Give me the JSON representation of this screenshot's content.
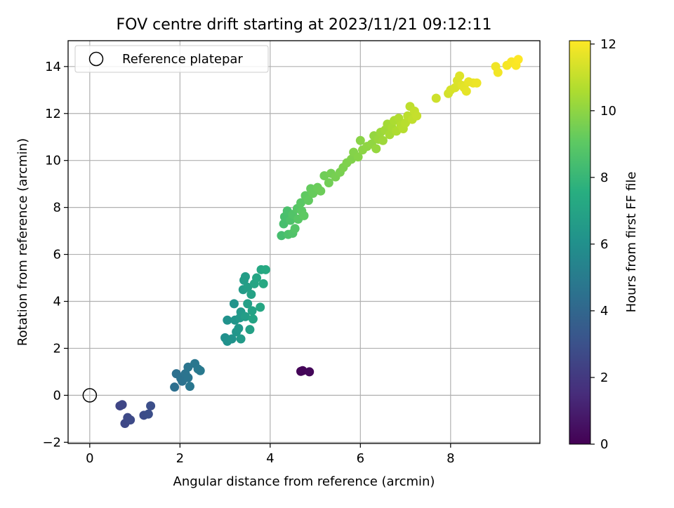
{
  "chart_data": {
    "type": "scatter",
    "title": "FOV centre drift starting at 2023/11/21 09:12:11",
    "xlabel": "Angular distance from reference (arcmin)",
    "ylabel": "Rotation from reference (arcmin)",
    "xlim": [
      -0.48,
      9.98
    ],
    "ylim": [
      -2.05,
      15.1
    ],
    "x_ticks": [
      0,
      2,
      4,
      6,
      8
    ],
    "y_ticks": [
      -2,
      0,
      2,
      4,
      6,
      8,
      10,
      12,
      14
    ],
    "grid": true,
    "legend": {
      "placement": "upper-left",
      "entries": [
        "Reference platepar"
      ]
    },
    "colorbar": {
      "label": "Hours from first FF file",
      "colormap": "viridis",
      "range": [
        0,
        12.1
      ],
      "ticks": [
        0,
        2,
        4,
        6,
        8,
        10,
        12
      ]
    },
    "reference_point": {
      "x": 0,
      "y": 0
    },
    "points": [
      {
        "x": 4.68,
        "y": 1.02,
        "c": 0.1
      },
      {
        "x": 4.72,
        "y": 1.05,
        "c": 0.15
      },
      {
        "x": 4.87,
        "y": 1.0,
        "c": 0.2
      },
      {
        "x": 0.67,
        "y": -0.45,
        "c": 2.5
      },
      {
        "x": 0.72,
        "y": -0.4,
        "c": 2.55
      },
      {
        "x": 0.78,
        "y": -1.2,
        "c": 2.6
      },
      {
        "x": 0.84,
        "y": -0.95,
        "c": 2.65
      },
      {
        "x": 0.9,
        "y": -1.05,
        "c": 2.7
      },
      {
        "x": 1.2,
        "y": -0.85,
        "c": 2.8
      },
      {
        "x": 1.3,
        "y": -0.8,
        "c": 2.85
      },
      {
        "x": 1.35,
        "y": -0.45,
        "c": 2.9
      },
      {
        "x": 1.88,
        "y": 0.35,
        "c": 4.4
      },
      {
        "x": 1.92,
        "y": 0.92,
        "c": 4.45
      },
      {
        "x": 2.02,
        "y": 0.72,
        "c": 4.5
      },
      {
        "x": 2.05,
        "y": 0.6,
        "c": 4.55
      },
      {
        "x": 2.12,
        "y": 0.92,
        "c": 4.6
      },
      {
        "x": 2.18,
        "y": 0.75,
        "c": 4.65
      },
      {
        "x": 2.18,
        "y": 1.2,
        "c": 4.7
      },
      {
        "x": 2.22,
        "y": 0.38,
        "c": 4.75
      },
      {
        "x": 2.33,
        "y": 1.35,
        "c": 4.8
      },
      {
        "x": 2.4,
        "y": 1.12,
        "c": 4.85
      },
      {
        "x": 2.45,
        "y": 1.05,
        "c": 4.9
      },
      {
        "x": 3.0,
        "y": 2.45,
        "c": 6.0
      },
      {
        "x": 3.05,
        "y": 2.3,
        "c": 6.05
      },
      {
        "x": 3.05,
        "y": 3.2,
        "c": 6.1
      },
      {
        "x": 3.15,
        "y": 2.4,
        "c": 6.15
      },
      {
        "x": 3.2,
        "y": 3.9,
        "c": 6.2
      },
      {
        "x": 3.22,
        "y": 3.2,
        "c": 6.25
      },
      {
        "x": 3.25,
        "y": 2.7,
        "c": 6.3
      },
      {
        "x": 3.3,
        "y": 2.85,
        "c": 6.35
      },
      {
        "x": 3.33,
        "y": 3.3,
        "c": 6.4
      },
      {
        "x": 3.35,
        "y": 3.55,
        "c": 6.45
      },
      {
        "x": 3.35,
        "y": 2.4,
        "c": 6.5
      },
      {
        "x": 3.4,
        "y": 4.5,
        "c": 6.55
      },
      {
        "x": 3.42,
        "y": 4.9,
        "c": 6.6
      },
      {
        "x": 3.45,
        "y": 3.35,
        "c": 6.65
      },
      {
        "x": 3.45,
        "y": 5.05,
        "c": 6.7
      },
      {
        "x": 3.5,
        "y": 4.6,
        "c": 6.75
      },
      {
        "x": 3.5,
        "y": 3.9,
        "c": 6.8
      },
      {
        "x": 3.55,
        "y": 2.8,
        "c": 6.85
      },
      {
        "x": 3.58,
        "y": 4.3,
        "c": 6.9
      },
      {
        "x": 3.6,
        "y": 3.6,
        "c": 6.95
      },
      {
        "x": 3.62,
        "y": 3.25,
        "c": 7.0
      },
      {
        "x": 3.65,
        "y": 4.75,
        "c": 7.05
      },
      {
        "x": 3.7,
        "y": 5.0,
        "c": 7.1
      },
      {
        "x": 3.78,
        "y": 3.75,
        "c": 7.15
      },
      {
        "x": 3.8,
        "y": 5.35,
        "c": 7.2
      },
      {
        "x": 3.85,
        "y": 4.75,
        "c": 7.25
      },
      {
        "x": 3.9,
        "y": 5.35,
        "c": 7.3
      },
      {
        "x": 4.25,
        "y": 6.8,
        "c": 8.4
      },
      {
        "x": 4.3,
        "y": 7.3,
        "c": 8.45
      },
      {
        "x": 4.32,
        "y": 7.6,
        "c": 8.5
      },
      {
        "x": 4.38,
        "y": 7.85,
        "c": 8.55
      },
      {
        "x": 4.4,
        "y": 6.85,
        "c": 8.6
      },
      {
        "x": 4.45,
        "y": 7.45,
        "c": 8.65
      },
      {
        "x": 4.5,
        "y": 6.9,
        "c": 8.7
      },
      {
        "x": 4.5,
        "y": 7.7,
        "c": 8.75
      },
      {
        "x": 4.55,
        "y": 7.1,
        "c": 8.8
      },
      {
        "x": 4.6,
        "y": 7.95,
        "c": 8.85
      },
      {
        "x": 4.62,
        "y": 7.5,
        "c": 8.9
      },
      {
        "x": 4.68,
        "y": 8.2,
        "c": 8.95
      },
      {
        "x": 4.7,
        "y": 7.85,
        "c": 9.0
      },
      {
        "x": 4.75,
        "y": 7.65,
        "c": 9.05
      },
      {
        "x": 4.78,
        "y": 8.5,
        "c": 9.1
      },
      {
        "x": 4.85,
        "y": 8.3,
        "c": 9.15
      },
      {
        "x": 4.9,
        "y": 8.8,
        "c": 9.2
      },
      {
        "x": 4.95,
        "y": 8.6,
        "c": 9.25
      },
      {
        "x": 5.05,
        "y": 8.85,
        "c": 9.3
      },
      {
        "x": 5.12,
        "y": 8.7,
        "c": 9.35
      },
      {
        "x": 5.2,
        "y": 9.35,
        "c": 9.4
      },
      {
        "x": 5.3,
        "y": 9.05,
        "c": 9.45
      },
      {
        "x": 5.35,
        "y": 9.45,
        "c": 9.5
      },
      {
        "x": 5.45,
        "y": 9.3,
        "c": 9.55
      },
      {
        "x": 5.55,
        "y": 9.5,
        "c": 9.6
      },
      {
        "x": 5.62,
        "y": 9.7,
        "c": 9.65
      },
      {
        "x": 5.7,
        "y": 9.9,
        "c": 9.7
      },
      {
        "x": 5.8,
        "y": 10.05,
        "c": 9.75
      },
      {
        "x": 5.85,
        "y": 10.35,
        "c": 9.8
      },
      {
        "x": 5.95,
        "y": 10.15,
        "c": 9.85
      },
      {
        "x": 6.0,
        "y": 10.85,
        "c": 9.9
      },
      {
        "x": 6.05,
        "y": 10.45,
        "c": 9.95
      },
      {
        "x": 6.15,
        "y": 10.6,
        "c": 10.0
      },
      {
        "x": 6.25,
        "y": 10.7,
        "c": 10.05
      },
      {
        "x": 6.3,
        "y": 11.05,
        "c": 10.1
      },
      {
        "x": 6.35,
        "y": 10.5,
        "c": 10.15
      },
      {
        "x": 6.4,
        "y": 10.9,
        "c": 10.2
      },
      {
        "x": 6.45,
        "y": 11.2,
        "c": 10.25
      },
      {
        "x": 6.5,
        "y": 10.85,
        "c": 10.3
      },
      {
        "x": 6.55,
        "y": 11.3,
        "c": 10.35
      },
      {
        "x": 6.6,
        "y": 11.55,
        "c": 10.4
      },
      {
        "x": 6.65,
        "y": 11.1,
        "c": 10.45
      },
      {
        "x": 6.7,
        "y": 11.4,
        "c": 10.5
      },
      {
        "x": 6.75,
        "y": 11.7,
        "c": 10.55
      },
      {
        "x": 6.8,
        "y": 11.25,
        "c": 10.6
      },
      {
        "x": 6.85,
        "y": 11.8,
        "c": 10.65
      },
      {
        "x": 6.9,
        "y": 11.5,
        "c": 10.7
      },
      {
        "x": 6.95,
        "y": 11.35,
        "c": 10.75
      },
      {
        "x": 7.0,
        "y": 11.6,
        "c": 10.8
      },
      {
        "x": 7.05,
        "y": 11.9,
        "c": 10.85
      },
      {
        "x": 7.1,
        "y": 12.3,
        "c": 10.9
      },
      {
        "x": 7.15,
        "y": 11.75,
        "c": 10.95
      },
      {
        "x": 7.2,
        "y": 12.1,
        "c": 11.0
      },
      {
        "x": 7.25,
        "y": 11.9,
        "c": 11.05
      },
      {
        "x": 7.68,
        "y": 12.65,
        "c": 11.2
      },
      {
        "x": 7.95,
        "y": 12.85,
        "c": 11.3
      },
      {
        "x": 8.0,
        "y": 13.0,
        "c": 11.35
      },
      {
        "x": 8.1,
        "y": 13.1,
        "c": 11.4
      },
      {
        "x": 8.15,
        "y": 13.4,
        "c": 11.45
      },
      {
        "x": 8.2,
        "y": 13.6,
        "c": 11.5
      },
      {
        "x": 8.25,
        "y": 13.2,
        "c": 11.55
      },
      {
        "x": 8.3,
        "y": 13.1,
        "c": 11.6
      },
      {
        "x": 8.35,
        "y": 12.95,
        "c": 11.65
      },
      {
        "x": 8.4,
        "y": 13.35,
        "c": 11.7
      },
      {
        "x": 8.5,
        "y": 13.3,
        "c": 11.75
      },
      {
        "x": 8.58,
        "y": 13.3,
        "c": 11.8
      },
      {
        "x": 9.0,
        "y": 14.0,
        "c": 11.85
      },
      {
        "x": 9.05,
        "y": 13.75,
        "c": 11.9
      },
      {
        "x": 9.25,
        "y": 14.05,
        "c": 11.95
      },
      {
        "x": 9.35,
        "y": 14.2,
        "c": 12.0
      },
      {
        "x": 9.45,
        "y": 14.05,
        "c": 12.05
      },
      {
        "x": 9.5,
        "y": 14.3,
        "c": 12.1
      }
    ]
  }
}
